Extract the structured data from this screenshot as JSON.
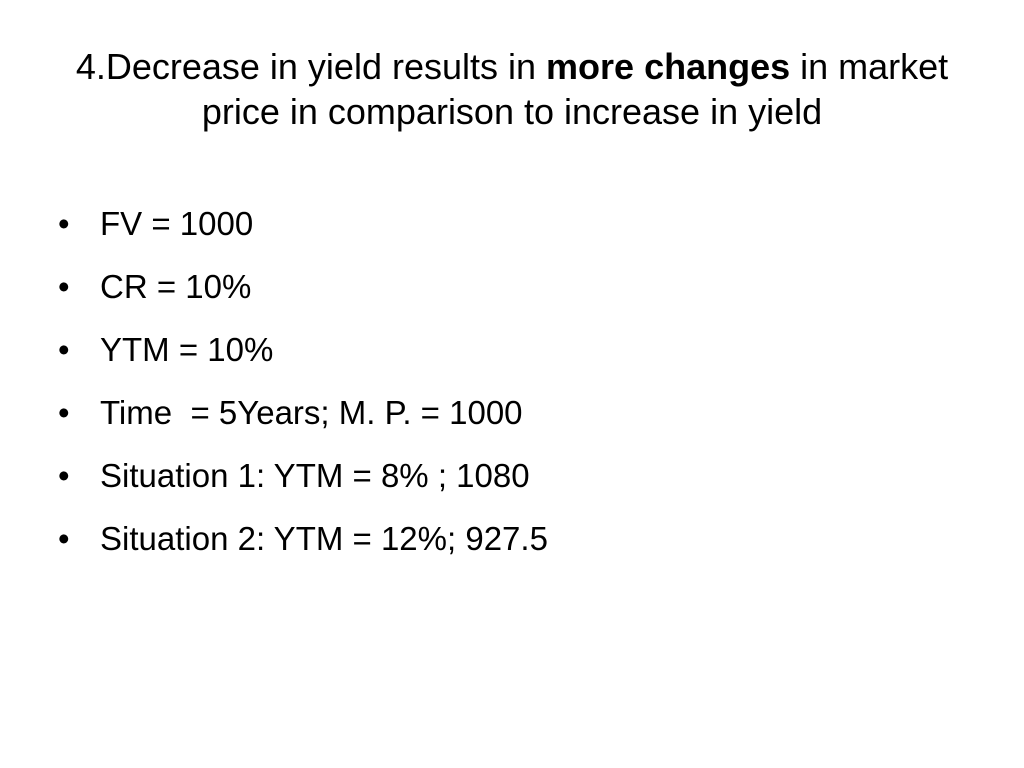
{
  "slide": {
    "title": {
      "part1": "4.Decrease in yield results in ",
      "emphasis": "more changes",
      "part2": " in market price in comparison to increase in yield"
    },
    "bullet_glyph": "•",
    "bullets": [
      "FV = 1000",
      "CR = 10%",
      "YTM = 10%",
      "Time  = 5Years; M. P. = 1000",
      "Situation 1: YTM = 8% ; 1080",
      "Situation 2: YTM = 12%; 927.5"
    ]
  }
}
